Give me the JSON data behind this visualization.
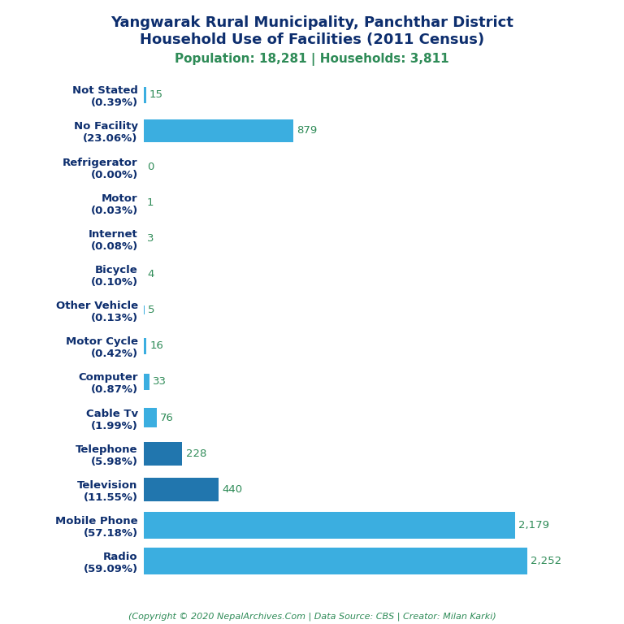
{
  "title_line1": "Yangwarak Rural Municipality, Panchthar District",
  "title_line2": "Household Use of Facilities (2011 Census)",
  "subtitle": "Population: 18,281 | Households: 3,811",
  "footer": "(Copyright © 2020 NepalArchives.Com | Data Source: CBS | Creator: Milan Karki)",
  "categories": [
    "Not Stated\n(0.39%)",
    "No Facility\n(23.06%)",
    "Refrigerator\n(0.00%)",
    "Motor\n(0.03%)",
    "Internet\n(0.08%)",
    "Bicycle\n(0.10%)",
    "Other Vehicle\n(0.13%)",
    "Motor Cycle\n(0.42%)",
    "Computer\n(0.87%)",
    "Cable Tv\n(1.99%)",
    "Telephone\n(5.98%)",
    "Television\n(11.55%)",
    "Mobile Phone\n(57.18%)",
    "Radio\n(59.09%)"
  ],
  "values": [
    15,
    879,
    0,
    1,
    3,
    4,
    5,
    16,
    33,
    76,
    228,
    440,
    2179,
    2252
  ],
  "bar_colors": [
    "#3baee0",
    "#3baee0",
    "#3baee0",
    "#3baee0",
    "#3baee0",
    "#3baee0",
    "#3baee0",
    "#3baee0",
    "#3baee0",
    "#3baee0",
    "#2176ae",
    "#2176ae",
    "#3baee0",
    "#3baee0"
  ],
  "value_color": "#2e8b57",
  "title_color": "#0d2e6e",
  "subtitle_color": "#2e8b57",
  "footer_color": "#2e8b57",
  "background_color": "#ffffff",
  "xlim": [
    0,
    2600
  ]
}
